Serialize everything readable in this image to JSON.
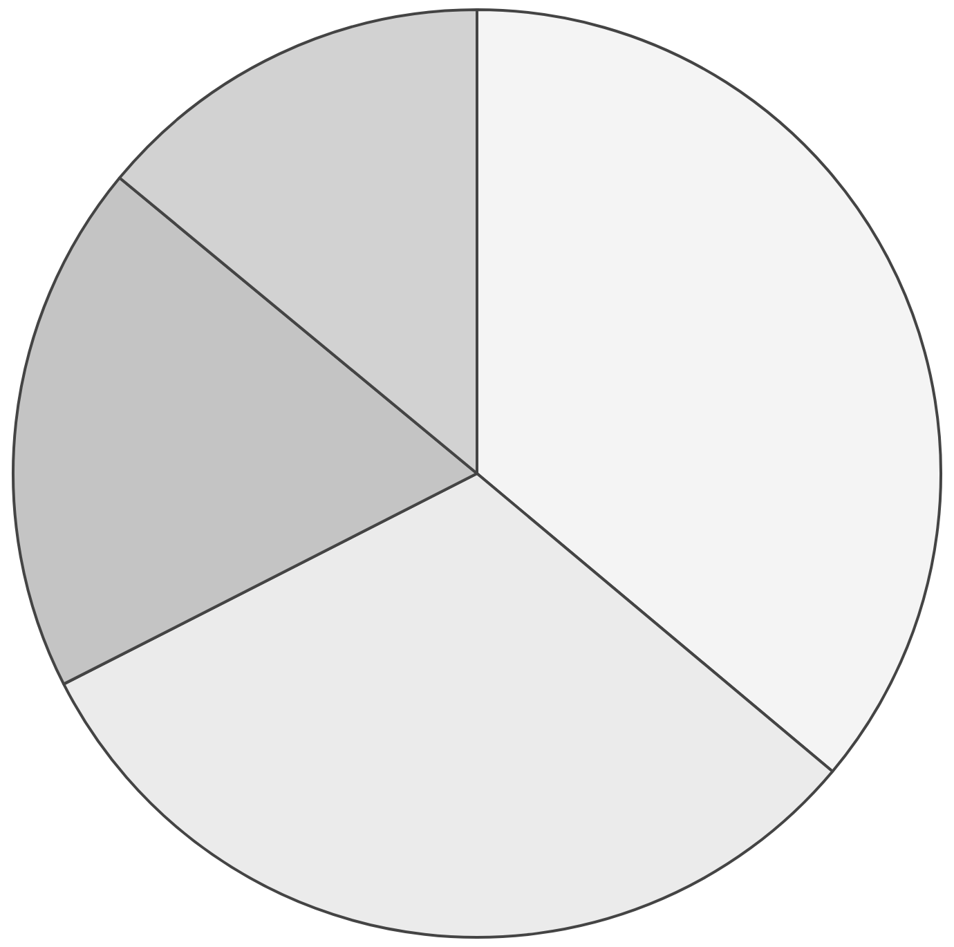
{
  "chart_data": {
    "type": "pie",
    "categories": [
      null,
      null,
      null,
      null
    ],
    "values": [
      36.1,
      31.4,
      18.5,
      14.0
    ],
    "colors": [
      "#f4f4f4",
      "#ebebeb",
      "#c4c4c4",
      "#d2d2d2"
    ],
    "legend": false
  }
}
